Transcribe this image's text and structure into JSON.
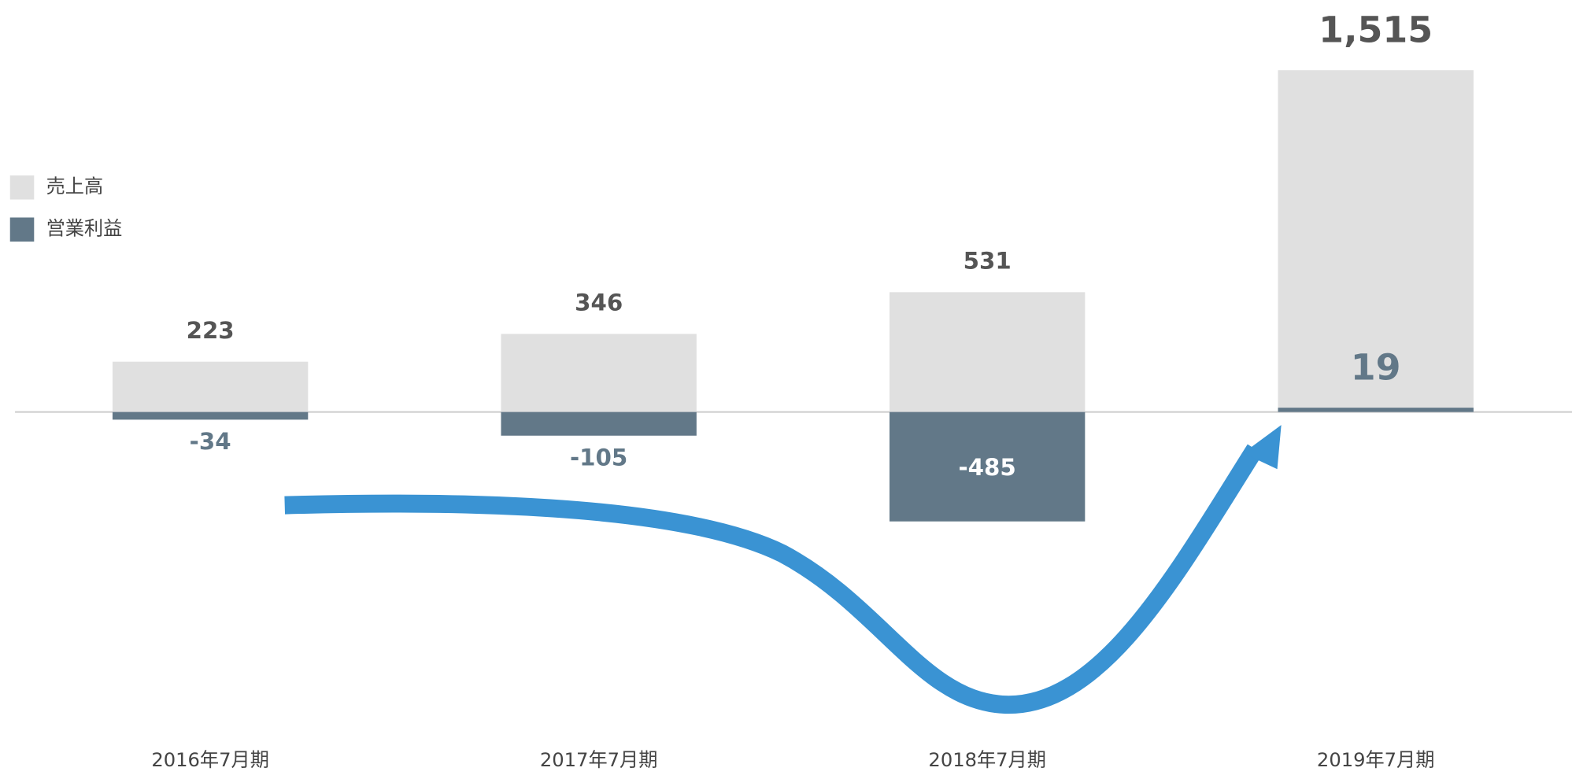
{
  "chart_data": {
    "type": "bar",
    "categories": [
      "2016年7月期",
      "2017年7月期",
      "2018年7月期",
      "2019年7月期"
    ],
    "series": [
      {
        "name": "売上高",
        "color": "#e0e0e0",
        "values": [
          223,
          346,
          531,
          1515
        ],
        "value_labels": [
          "223",
          "346",
          "531",
          "1,515"
        ]
      },
      {
        "name": "営業利益",
        "color": "#627888",
        "values": [
          -34,
          -105,
          -485,
          19
        ]
      }
    ]
  }
}
